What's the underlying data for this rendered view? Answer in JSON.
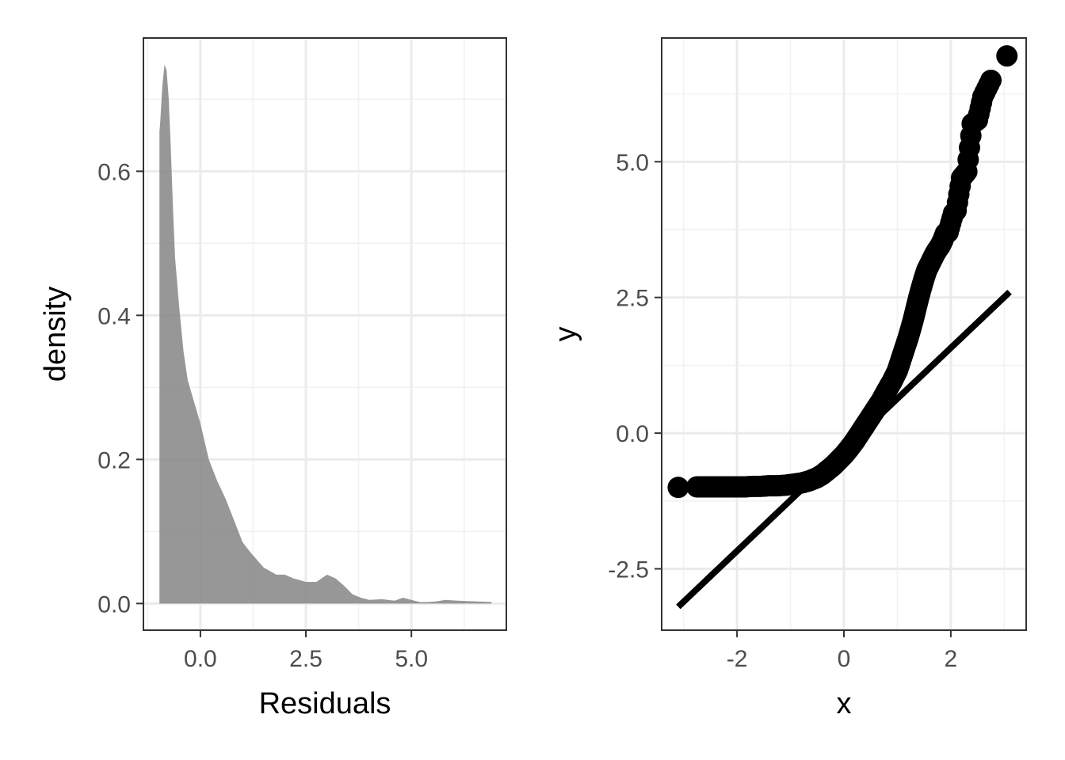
{
  "colors": {
    "panel_border": "#333333",
    "grid_major": "#ebebeb",
    "grid_minor": "#f2f2f2",
    "density_fill": "#808080",
    "points": "#000000",
    "line": "#000000"
  },
  "chart_data": [
    {
      "type": "area",
      "title": "",
      "xlabel": "Residuals",
      "ylabel": "density",
      "xlim": [
        -1.35,
        7.25
      ],
      "ylim": [
        -0.037,
        0.785
      ],
      "x_ticks": [
        0.0,
        2.5,
        5.0
      ],
      "x_tick_labels": [
        "0.0",
        "2.5",
        "5.0"
      ],
      "y_ticks": [
        0.0,
        0.2,
        0.4,
        0.6
      ],
      "y_tick_labels": [
        "0.0",
        "0.2",
        "0.4",
        "0.6"
      ],
      "grid": true,
      "series": [
        {
          "x": [
            -0.97,
            -0.95,
            -0.9,
            -0.85,
            -0.8,
            -0.75,
            -0.7,
            -0.65,
            -0.6,
            -0.5,
            -0.4,
            -0.3,
            -0.2,
            -0.1,
            0.0,
            0.2,
            0.4,
            0.6,
            0.8,
            1.0,
            1.2,
            1.5,
            1.8,
            2.0,
            2.2,
            2.5,
            2.75,
            3.0,
            3.2,
            3.4,
            3.6,
            3.8,
            4.0,
            4.3,
            4.6,
            4.8,
            5.0,
            5.2,
            5.4,
            5.6,
            5.8,
            6.1,
            6.5,
            6.9
          ],
          "y": [
            0.655,
            0.67,
            0.72,
            0.748,
            0.74,
            0.7,
            0.63,
            0.55,
            0.48,
            0.41,
            0.35,
            0.31,
            0.29,
            0.27,
            0.25,
            0.2,
            0.17,
            0.145,
            0.115,
            0.085,
            0.07,
            0.05,
            0.04,
            0.04,
            0.035,
            0.03,
            0.03,
            0.04,
            0.035,
            0.025,
            0.013,
            0.008,
            0.005,
            0.006,
            0.004,
            0.008,
            0.005,
            0.002,
            0.002,
            0.003,
            0.005,
            0.004,
            0.003,
            0.002
          ]
        }
      ]
    },
    {
      "type": "scatter",
      "title": "",
      "xlabel": "x",
      "ylabel": "y",
      "xlim": [
        -3.41,
        3.41
      ],
      "ylim": [
        -3.63,
        7.28
      ],
      "x_ticks": [
        -2,
        0,
        2
      ],
      "x_tick_labels": [
        "-2",
        "0",
        "2"
      ],
      "y_ticks": [
        -2.5,
        0.0,
        2.5,
        5.0
      ],
      "y_tick_labels": [
        "-2.5",
        "0.0",
        "2.5",
        "5.0"
      ],
      "grid": true,
      "reference_line": {
        "x": [
          -3.1,
          3.1
        ],
        "y": [
          -3.2,
          2.6
        ]
      },
      "series": [
        {
          "x": [
            -3.1,
            -2.75,
            -2.6,
            -2.45,
            -2.3,
            -2.15,
            -2.0,
            -1.85,
            -1.7,
            -1.55,
            -1.4,
            -1.25,
            -1.1,
            -0.95,
            -0.8,
            -0.65,
            -0.5,
            -0.4,
            -0.3,
            -0.2,
            -0.1,
            0.0,
            0.1,
            0.2,
            0.3,
            0.4,
            0.5,
            0.6,
            0.7,
            0.8,
            0.9,
            1.0,
            1.05,
            1.1,
            1.15,
            1.2,
            1.25,
            1.3,
            1.35,
            1.4,
            1.45,
            1.5,
            1.55,
            1.6,
            1.65,
            1.7,
            1.75,
            1.8,
            1.85,
            1.9,
            1.95,
            2.05,
            2.1,
            2.2,
            2.3,
            2.4,
            2.5,
            2.6,
            2.75,
            3.05
          ],
          "y": [
            -1.0,
            -0.99,
            -0.99,
            -0.99,
            -0.99,
            -0.99,
            -0.99,
            -0.99,
            -0.98,
            -0.98,
            -0.97,
            -0.97,
            -0.96,
            -0.94,
            -0.92,
            -0.88,
            -0.82,
            -0.76,
            -0.68,
            -0.6,
            -0.5,
            -0.4,
            -0.28,
            -0.15,
            0.0,
            0.15,
            0.3,
            0.45,
            0.6,
            0.78,
            0.95,
            1.15,
            1.3,
            1.45,
            1.6,
            1.75,
            1.92,
            2.1,
            2.3,
            2.5,
            2.68,
            2.85,
            3.0,
            3.1,
            3.2,
            3.3,
            3.38,
            3.45,
            3.55,
            3.68,
            3.7,
            4.05,
            4.1,
            4.7,
            4.82,
            5.7,
            5.77,
            6.2,
            6.5,
            6.95
          ]
        }
      ]
    }
  ]
}
